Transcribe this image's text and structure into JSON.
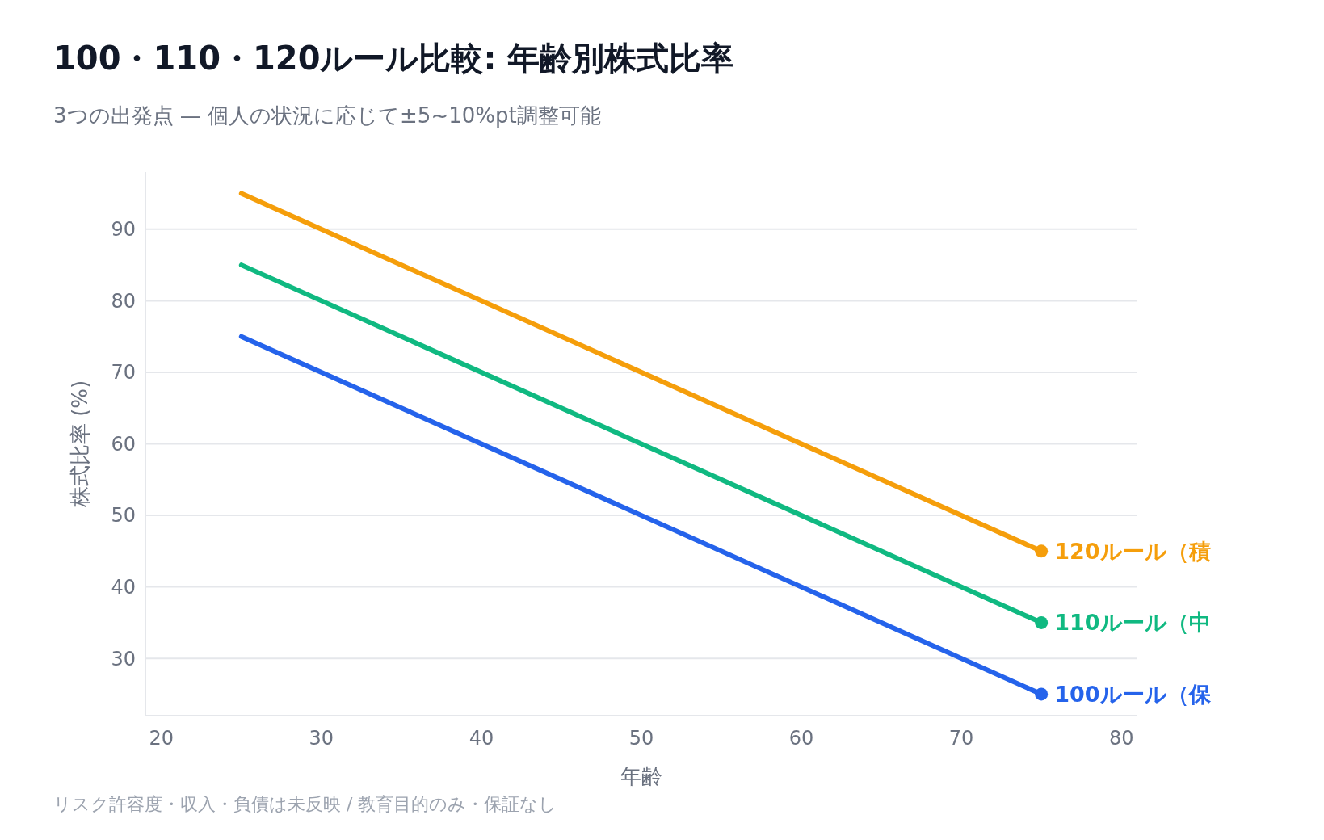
{
  "chart_data": {
    "type": "line",
    "title": "100・110・120ルール比較: 年齢別株式比率",
    "subtitle": "3つの出発点 — 個人の状況に応じて±5~10%pt調整可能",
    "xlabel": "年齢",
    "ylabel": "株式比率 (%)",
    "x": [
      25,
      75
    ],
    "series": [
      {
        "name": "120ルール（積",
        "color": "#f59e0b",
        "values": [
          95,
          45
        ]
      },
      {
        "name": "110ルール（中",
        "color": "#10b981",
        "values": [
          85,
          35
        ]
      },
      {
        "name": "100ルール（保",
        "color": "#2563eb",
        "values": [
          75,
          25
        ]
      }
    ],
    "xlim": [
      19,
      81
    ],
    "xticks": [
      20,
      30,
      40,
      50,
      60,
      70,
      80
    ],
    "ylim": [
      22,
      98
    ],
    "yticks": [
      30,
      40,
      50,
      60,
      70,
      80,
      90
    ],
    "grid": "y",
    "legend": false,
    "annotations": [
      "リスク許容度・収入・負債は未反映 / 教育目的のみ・保証なし"
    ]
  }
}
